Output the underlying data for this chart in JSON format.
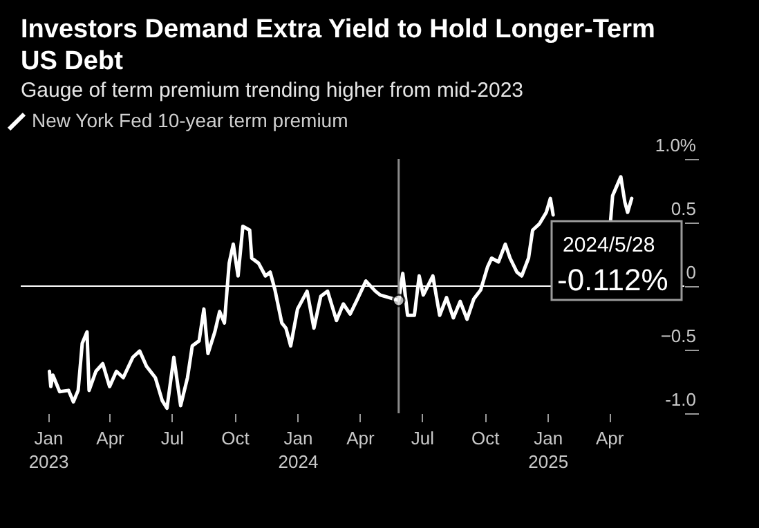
{
  "chart_data": {
    "type": "line",
    "title": "Investors Demand Extra Yield to Hold Longer-Term US Debt",
    "subtitle": "Gauge of term premium trending higher from mid-2023",
    "x": [
      "2023-01-03",
      "2023-01-05",
      "2023-01-08",
      "2023-01-18",
      "2023-01-31",
      "2023-02-07",
      "2023-02-14",
      "2023-02-20",
      "2023-02-27",
      "2023-03-02",
      "2023-03-12",
      "2023-03-22",
      "2023-04-01",
      "2023-04-11",
      "2023-04-21",
      "2023-05-05",
      "2023-05-15",
      "2023-05-25",
      "2023-06-07",
      "2023-06-17",
      "2023-06-24",
      "2023-07-04",
      "2023-07-14",
      "2023-07-24",
      "2023-07-31",
      "2023-08-10",
      "2023-08-17",
      "2023-08-23",
      "2023-09-02",
      "2023-09-09",
      "2023-09-16",
      "2023-09-23",
      "2023-09-29",
      "2023-10-06",
      "2023-10-13",
      "2023-10-23",
      "2023-10-26",
      "2023-11-05",
      "2023-11-15",
      "2023-11-22",
      "2023-11-29",
      "2023-12-09",
      "2023-12-15",
      "2023-12-22",
      "2024-01-01",
      "2024-01-15",
      "2024-01-25",
      "2024-02-04",
      "2024-02-14",
      "2024-02-27",
      "2024-03-08",
      "2024-03-18",
      "2024-03-28",
      "2024-04-10",
      "2024-04-24",
      "2024-05-01",
      "2024-05-28",
      "2024-06-03",
      "2024-06-10",
      "2024-06-20",
      "2024-06-27",
      "2024-07-03",
      "2024-07-17",
      "2024-07-27",
      "2024-08-06",
      "2024-08-16",
      "2024-08-26",
      "2024-09-05",
      "2024-09-15",
      "2024-09-25",
      "2024-10-05",
      "2024-10-11",
      "2024-10-21",
      "2024-10-31",
      "2024-11-07",
      "2024-11-17",
      "2024-11-24",
      "2024-12-04",
      "2024-12-10",
      "2024-12-20",
      "2024-12-30",
      "2025-01-05",
      "2025-01-09",
      "2025-02-15",
      "2025-04-03",
      "2025-04-06",
      "2025-04-18",
      "2025-04-24",
      "2025-04-28",
      "2025-05-04"
    ],
    "series": [
      {
        "name": "New York Fed 10-year term premium",
        "color": "#ffffff",
        "values": [
          -0.67,
          -0.79,
          -0.7,
          -0.83,
          -0.82,
          -0.91,
          -0.82,
          -0.45,
          -0.36,
          -0.82,
          -0.67,
          -0.61,
          -0.79,
          -0.67,
          -0.72,
          -0.56,
          -0.51,
          -0.63,
          -0.72,
          -0.9,
          -0.96,
          -0.56,
          -0.94,
          -0.72,
          -0.47,
          -0.43,
          -0.18,
          -0.53,
          -0.36,
          -0.2,
          -0.29,
          0.18,
          0.33,
          0.08,
          0.47,
          0.44,
          0.22,
          0.18,
          0.08,
          0.11,
          -0.03,
          -0.29,
          -0.33,
          -0.47,
          -0.18,
          -0.04,
          -0.33,
          -0.08,
          -0.04,
          -0.27,
          -0.14,
          -0.22,
          -0.11,
          0.04,
          -0.04,
          -0.07,
          -0.112,
          0.1,
          -0.23,
          -0.23,
          0.08,
          -0.07,
          0.08,
          -0.23,
          -0.09,
          -0.25,
          -0.12,
          -0.26,
          -0.1,
          -0.03,
          0.15,
          0.22,
          0.19,
          0.33,
          0.22,
          0.11,
          0.08,
          0.22,
          0.44,
          0.49,
          0.58,
          0.69,
          0.56,
          null,
          0.51,
          0.71,
          0.86,
          0.66,
          0.58,
          0.69
        ]
      }
    ],
    "xlim": [
      "2022-11-22",
      "2025-07-20"
    ],
    "xticks": [
      {
        "value": "2023-01-01",
        "label": "Jan\n2023"
      },
      {
        "value": "2023-04-01",
        "label": "Apr"
      },
      {
        "value": "2023-07-01",
        "label": "Jul"
      },
      {
        "value": "2023-10-01",
        "label": "Oct"
      },
      {
        "value": "2024-01-01",
        "label": "Jan\n2024"
      },
      {
        "value": "2024-04-01",
        "label": "Apr"
      },
      {
        "value": "2024-07-01",
        "label": "Jul"
      },
      {
        "value": "2024-10-01",
        "label": "Oct"
      },
      {
        "value": "2025-01-01",
        "label": "Jan\n2025"
      },
      {
        "value": "2025-04-01",
        "label": "Apr"
      }
    ],
    "ylim": [
      -1.0,
      1.0
    ],
    "yticks": [
      {
        "value": -1.0,
        "label": "-1.0"
      },
      -0.5,
      0,
      0.5,
      {
        "value": 1.0,
        "label": "1.0%"
      }
    ],
    "ref_lines": [
      {
        "axis": "y",
        "value": 0,
        "color": "#ffffff"
      },
      {
        "axis": "x",
        "value": "2024-05-28",
        "color": "#8a8a8a"
      }
    ],
    "annotations": [
      "2024/5/28",
      "-0.112%"
    ],
    "legend": "top left",
    "grid": false,
    "marker": "none",
    "line_style": "solid"
  }
}
